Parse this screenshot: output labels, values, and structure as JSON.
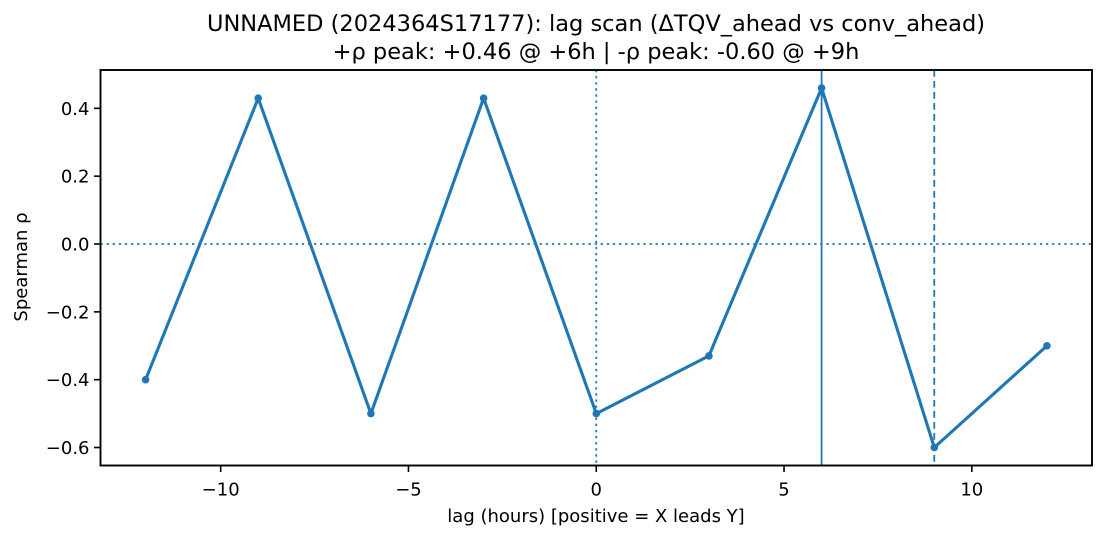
{
  "chart_data": {
    "type": "line",
    "title": "UNNAMED (2024364S17177): lag scan (ΔTQV_ahead vs conv_ahead)",
    "subtitle": "+ρ peak: +0.46 @ +6h | -ρ peak: -0.60 @ +9h",
    "xlabel": "lag (hours) [positive = X leads Y]",
    "ylabel": "Spearman ρ",
    "series_name": "spearman-rho-vs-lag",
    "x": [
      -12,
      -9,
      -6,
      -3,
      0,
      3,
      6,
      9,
      12
    ],
    "y": [
      -0.4,
      0.43,
      -0.5,
      0.43,
      -0.5,
      -0.33,
      0.46,
      -0.6,
      -0.3
    ],
    "peaks": {
      "positive": {
        "rho": 0.46,
        "lag_hours": 6
      },
      "negative": {
        "rho": -0.6,
        "lag_hours": 9
      }
    },
    "xlim": [
      -13.2,
      13.2
    ],
    "ylim": [
      -0.653,
      0.513
    ],
    "xticks": {
      "values": [
        -10,
        -5,
        0,
        5,
        10
      ],
      "labels": [
        "−10",
        "−5",
        "0",
        "5",
        "10"
      ]
    },
    "yticks": {
      "values": [
        0.4,
        0.2,
        0.0,
        -0.2,
        -0.4,
        -0.6
      ],
      "labels": [
        "0.4",
        "0.2",
        "0.0",
        "−0.2",
        "−0.4",
        "−0.6"
      ]
    },
    "reference_lines": [
      {
        "name": "zero-correlation-hline",
        "orientation": "horizontal",
        "value": 0,
        "style": "dotted"
      },
      {
        "name": "zero-lag-vline",
        "orientation": "vertical",
        "value": 0,
        "style": "dotted"
      },
      {
        "name": "positive-peak-vline",
        "orientation": "vertical",
        "value": 6,
        "style": "solid"
      },
      {
        "name": "negative-peak-vline",
        "orientation": "vertical",
        "value": 9,
        "style": "dashed"
      }
    ],
    "marker": "circle",
    "grid": false,
    "legend": null,
    "colors": {
      "line": "#1f77b4",
      "reference": "#1f77b4",
      "axes": "#000000",
      "text": "#000000",
      "background": "#ffffff"
    }
  }
}
